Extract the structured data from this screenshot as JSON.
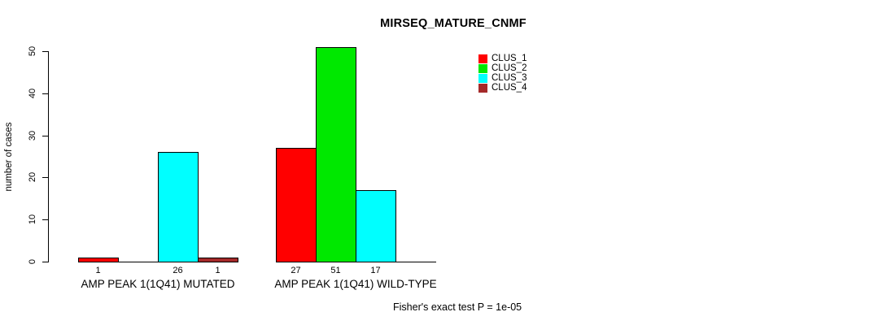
{
  "chart_data": {
    "type": "bar",
    "title": "MIRSEQ_MATURE_CNMF",
    "ylabel": "number of cases",
    "xlabel": "",
    "ylim": [
      0,
      50
    ],
    "yticks": [
      0,
      10,
      20,
      30,
      40,
      50
    ],
    "grid": false,
    "legend_position": "top-right-outside",
    "categories": [
      "AMP PEAK 1(1Q41) MUTATED",
      "AMP PEAK 1(1Q41) WILD-TYPE"
    ],
    "series": [
      {
        "name": "CLUS_1",
        "color": "#ff0000",
        "values": [
          1,
          27
        ]
      },
      {
        "name": "CLUS_2",
        "color": "#00e800",
        "values": [
          0,
          51
        ]
      },
      {
        "name": "CLUS_3",
        "color": "#00ffff",
        "values": [
          26,
          17
        ]
      },
      {
        "name": "CLUS_4",
        "color": "#a52a2a",
        "values": [
          1,
          0
        ]
      }
    ],
    "bar_value_labels": [
      "1",
      "",
      "26",
      "1",
      "27",
      "51",
      "17",
      ""
    ],
    "annotation": "Fisher's exact test P = 1e-05"
  }
}
